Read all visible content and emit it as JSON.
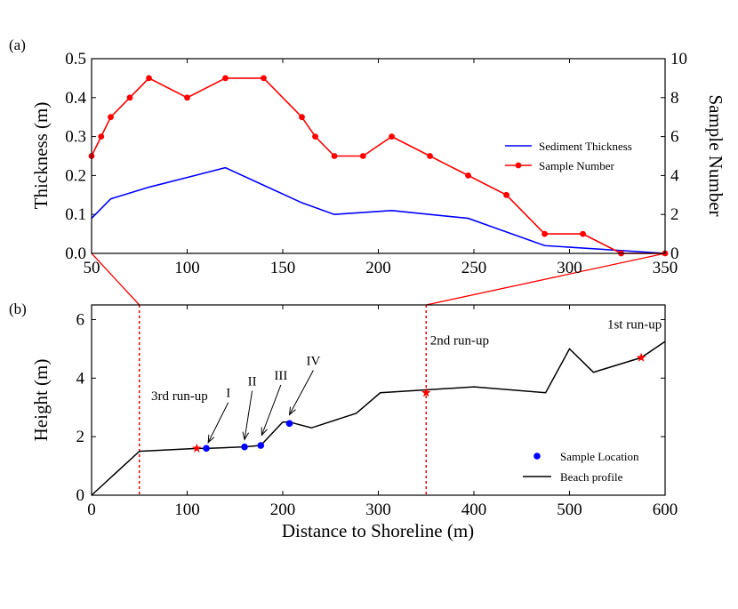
{
  "chart_data": [
    {
      "panel": "(a)",
      "type": "line",
      "x": [
        50,
        55,
        60,
        70,
        80,
        100,
        120,
        140,
        160,
        167,
        177,
        192,
        207,
        227,
        247,
        267,
        287,
        307,
        327,
        350
      ],
      "series": [
        {
          "name": "Sediment Thickness",
          "color": "#0000ff",
          "axis": "left",
          "x": [
            50,
            60,
            80,
            100,
            120,
            140,
            160,
            177,
            207,
            247,
            287,
            350
          ],
          "values": [
            0.09,
            0.14,
            0.17,
            0.195,
            0.22,
            0.175,
            0.13,
            0.1,
            0.11,
            0.09,
            0.02,
            0.0
          ]
        },
        {
          "name": "Sample Number",
          "color": "#ff0000",
          "axis": "right",
          "x": [
            50,
            55,
            60,
            70,
            80,
            100,
            120,
            140,
            160,
            167,
            177,
            192,
            207,
            227,
            247,
            267,
            287,
            307,
            327,
            350
          ],
          "values": [
            5,
            6,
            7,
            8,
            9,
            8,
            9,
            9,
            7,
            6,
            5,
            5,
            6,
            5,
            4,
            3,
            1,
            1,
            0,
            0
          ]
        }
      ],
      "xlim": [
        50,
        350
      ],
      "ylim": [
        0,
        0.5
      ],
      "ylim_right": [
        0,
        10
      ],
      "xticks": [
        "50",
        "100",
        "150",
        "200",
        "250",
        "300",
        "350"
      ],
      "yticks": [
        "0.0",
        "0.1",
        "0.2",
        "0.3",
        "0.4",
        "0.5"
      ],
      "yticks_right": [
        "0",
        "2",
        "4",
        "6",
        "8",
        "10"
      ],
      "ylabel": "Thickness (m)",
      "ylabel_right": "Sample Number",
      "legend": [
        "Sediment Thickness",
        "Sample Number"
      ],
      "legend_position": "center-right"
    },
    {
      "panel": "(b)",
      "type": "line",
      "series": [
        {
          "name": "Beach profile",
          "color": "#000000",
          "x": [
            0,
            50,
            110,
            120,
            160,
            177,
            200,
            207,
            230,
            277,
            302,
            350,
            400,
            475,
            500,
            525,
            575,
            600
          ],
          "values": [
            0,
            1.5,
            1.6,
            1.6,
            1.65,
            1.7,
            2.5,
            2.5,
            2.3,
            2.8,
            3.5,
            3.6,
            3.7,
            3.5,
            5.0,
            4.2,
            4.7,
            5.25
          ]
        },
        {
          "name": "Sample Location",
          "color": "#0000ff",
          "type": "scatter",
          "x": [
            120,
            160,
            177,
            207
          ],
          "values": [
            1.6,
            1.65,
            1.7,
            2.45
          ]
        },
        {
          "name": "Run-up marks",
          "color": "#ff0000",
          "type": "scatter",
          "x": [
            110,
            350,
            575
          ],
          "values": [
            1.6,
            3.5,
            4.7
          ]
        }
      ],
      "xlim": [
        0,
        600
      ],
      "ylim": [
        0,
        6.5
      ],
      "xticks": [
        "0",
        "100",
        "200",
        "300",
        "400",
        "500",
        "600"
      ],
      "yticks": [
        "0",
        "2",
        "4",
        "6"
      ],
      "xlabel": "Distance to Shoreline (m)",
      "ylabel": "Height (m)",
      "legend": [
        "Sample Location",
        "Beach profile"
      ],
      "legend_position": "bottom-right",
      "vlines_x": [
        50,
        350
      ],
      "annotations": [
        {
          "text": "3rd run-up",
          "x": 92,
          "y": 3.25
        },
        {
          "text": "2nd run-up",
          "x": 385,
          "y": 5.15
        },
        {
          "text": "1st run-up",
          "x": 568,
          "y": 5.7
        },
        {
          "text": "I",
          "x": 143,
          "y": 3.35,
          "target_x": 122,
          "target_y": 1.8
        },
        {
          "text": "II",
          "x": 168,
          "y": 3.75,
          "target_x": 160,
          "target_y": 1.9
        },
        {
          "text": "III",
          "x": 198,
          "y": 3.95,
          "target_x": 178,
          "target_y": 2.05
        },
        {
          "text": "IV",
          "x": 232,
          "y": 4.45,
          "target_x": 207,
          "target_y": 2.75
        }
      ]
    }
  ]
}
